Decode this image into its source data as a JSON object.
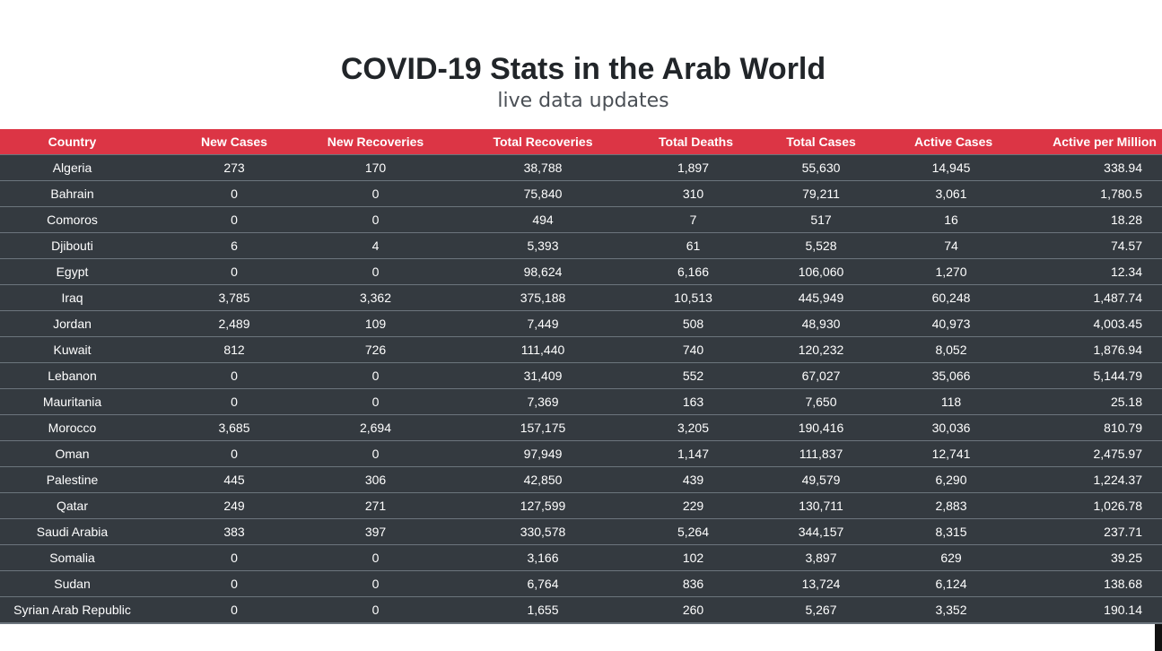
{
  "header": {
    "title": "COVID-19 Stats in the Arab World",
    "subtitle": "live data updates"
  },
  "table": {
    "columns": [
      "Country",
      "New Cases",
      "New Recoveries",
      "Total Recoveries",
      "Total Deaths",
      "Total Cases",
      "Active Cases",
      "Active per Million"
    ],
    "rows": [
      [
        "Algeria",
        "273",
        "170",
        "38,788",
        "1,897",
        "55,630",
        "14,945",
        "338.94"
      ],
      [
        "Bahrain",
        "0",
        "0",
        "75,840",
        "310",
        "79,211",
        "3,061",
        "1,780.5"
      ],
      [
        "Comoros",
        "0",
        "0",
        "494",
        "7",
        "517",
        "16",
        "18.28"
      ],
      [
        "Djibouti",
        "6",
        "4",
        "5,393",
        "61",
        "5,528",
        "74",
        "74.57"
      ],
      [
        "Egypt",
        "0",
        "0",
        "98,624",
        "6,166",
        "106,060",
        "1,270",
        "12.34"
      ],
      [
        "Iraq",
        "3,785",
        "3,362",
        "375,188",
        "10,513",
        "445,949",
        "60,248",
        "1,487.74"
      ],
      [
        "Jordan",
        "2,489",
        "109",
        "7,449",
        "508",
        "48,930",
        "40,973",
        "4,003.45"
      ],
      [
        "Kuwait",
        "812",
        "726",
        "111,440",
        "740",
        "120,232",
        "8,052",
        "1,876.94"
      ],
      [
        "Lebanon",
        "0",
        "0",
        "31,409",
        "552",
        "67,027",
        "35,066",
        "5,144.79"
      ],
      [
        "Mauritania",
        "0",
        "0",
        "7,369",
        "163",
        "7,650",
        "118",
        "25.18"
      ],
      [
        "Morocco",
        "3,685",
        "2,694",
        "157,175",
        "3,205",
        "190,416",
        "30,036",
        "810.79"
      ],
      [
        "Oman",
        "0",
        "0",
        "97,949",
        "1,147",
        "111,837",
        "12,741",
        "2,475.97"
      ],
      [
        "Palestine",
        "445",
        "306",
        "42,850",
        "439",
        "49,579",
        "6,290",
        "1,224.37"
      ],
      [
        "Qatar",
        "249",
        "271",
        "127,599",
        "229",
        "130,711",
        "2,883",
        "1,026.78"
      ],
      [
        "Saudi Arabia",
        "383",
        "397",
        "330,578",
        "5,264",
        "344,157",
        "8,315",
        "237.71"
      ],
      [
        "Somalia",
        "0",
        "0",
        "3,166",
        "102",
        "3,897",
        "629",
        "39.25"
      ],
      [
        "Sudan",
        "0",
        "0",
        "6,764",
        "836",
        "13,724",
        "6,124",
        "138.68"
      ],
      [
        "Syrian Arab Republic",
        "0",
        "0",
        "1,655",
        "260",
        "5,267",
        "3,352",
        "190.14"
      ]
    ]
  },
  "colors": {
    "header_row": "#dc3545",
    "body_row": "#343a40",
    "row_divider": "#6c757d",
    "title_text": "#212529"
  }
}
